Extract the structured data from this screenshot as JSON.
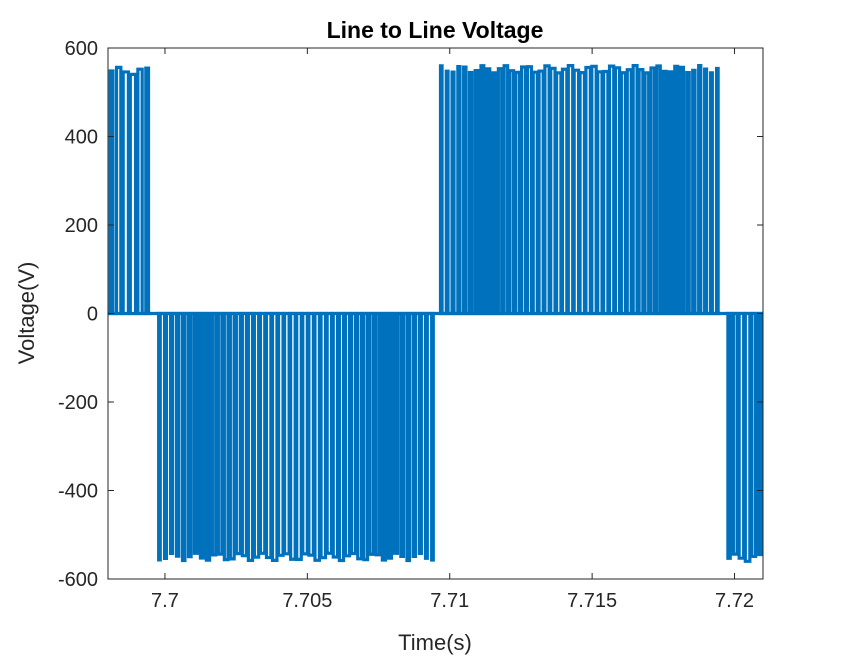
{
  "chart_data": {
    "type": "line",
    "title": "Line to Line Voltage",
    "xlabel": "Time(s)",
    "ylabel": "Voltage(V)",
    "xlim": [
      7.698,
      7.721
    ],
    "ylim": [
      -600,
      600
    ],
    "xticks": [
      7.7,
      7.705,
      7.71,
      7.715,
      7.72
    ],
    "xtick_labels": [
      "7.7",
      "7.705",
      "7.71",
      "7.715",
      "7.72"
    ],
    "yticks": [
      -600,
      -400,
      -200,
      0,
      200,
      400,
      600
    ],
    "ytick_labels": [
      "-600",
      "-400",
      "-200",
      "0",
      "200",
      "400",
      "600"
    ],
    "grid": false,
    "color": "#0072bd",
    "series": [
      {
        "pulses": [
          {
            "t0": 7.698,
            "t1": 7.6995,
            "value": 548,
            "count": 6
          },
          {
            "t0": 7.6997,
            "t1": 7.7095,
            "value": -550,
            "count": 46
          },
          {
            "t0": 7.7096,
            "t1": 7.7195,
            "value": 552,
            "count": 48
          },
          {
            "t0": 7.7197,
            "t1": 7.721,
            "value": -552,
            "count": 6
          }
        ]
      }
    ]
  }
}
